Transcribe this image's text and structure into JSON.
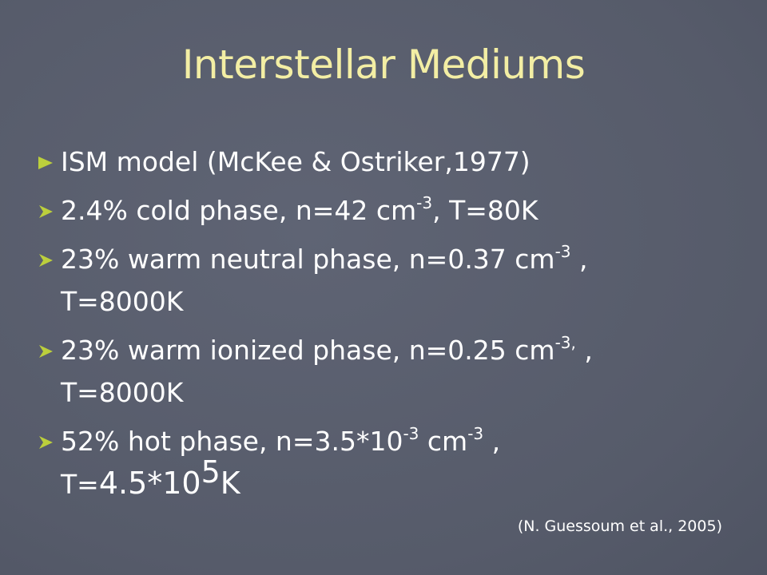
{
  "title": "Interstellar Mediums",
  "bullets": [
    {
      "lines": [
        [
          {
            "text": "ISM model (McKee & Ostriker,1977)"
          }
        ]
      ]
    },
    {
      "lines": [
        [
          {
            "text": "2.4% cold phase, n=42 cm"
          },
          {
            "sup": "-3"
          },
          {
            "text": ", T=80K"
          }
        ]
      ]
    },
    {
      "lines": [
        [
          {
            "text": "23% warm neutral phase, n=0.37 cm"
          },
          {
            "sup": "-3"
          },
          {
            "text": " ,"
          }
        ],
        [
          {
            "text": "T=8000K"
          }
        ]
      ]
    },
    {
      "lines": [
        [
          {
            "text": "23% warm ionized phase, n=0.25 cm"
          },
          {
            "sup": "-3,"
          },
          {
            "text": " ,"
          }
        ],
        [
          {
            "text": "T=8000K"
          }
        ]
      ]
    },
    {
      "lines": [
        [
          {
            "text": "52% hot phase, n=3.5*10"
          },
          {
            "sup": "-3"
          },
          {
            "text": " cm"
          },
          {
            "sup": "-3"
          },
          {
            "text": " ,"
          }
        ],
        [
          {
            "text": "T="
          },
          {
            "text": "4.5*10"
          },
          {
            "sup": "5"
          },
          {
            "text": "K"
          }
        ]
      ]
    }
  ],
  "citation": "(N. Guessoum et al., 2005)"
}
